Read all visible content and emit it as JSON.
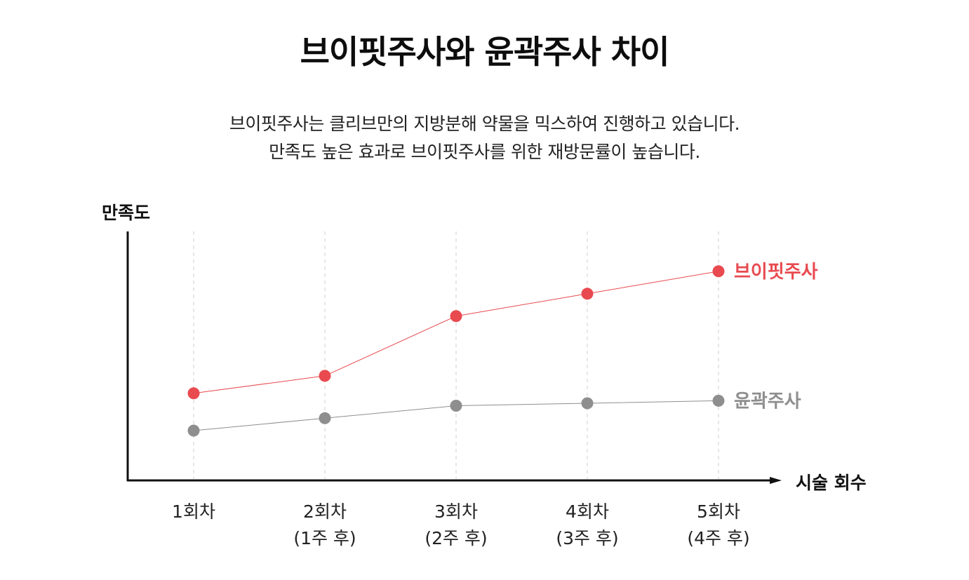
{
  "title": "브이핏주사와 윤곽주사 차이",
  "description": {
    "line1": "브이핏주사는 클리브만의 지방분해 약물을 믹스하여 진행하고 있습니다.",
    "line2": "만족도 높은 효과로 브이핏주사를 위한 재방문률이 높습니다."
  },
  "chart_data": {
    "type": "line",
    "ylabel": "만족도",
    "xlabel": "시술 회수",
    "categories": [
      [
        "1회차"
      ],
      [
        "2회차",
        "(1주 후)"
      ],
      [
        "3회차",
        "(2주 후)"
      ],
      [
        "4회차",
        "(3주 후)"
      ],
      [
        "5회차",
        "(4주 후)"
      ]
    ],
    "ylim": [
      0,
      10
    ],
    "grid": "vertical-dashed",
    "legend": "end-of-line",
    "series": [
      {
        "name": "브이핏주사",
        "color": "#e84a4f",
        "values": [
          3.5,
          4.2,
          6.6,
          7.5,
          8.4
        ]
      },
      {
        "name": "윤곽주사",
        "color": "#8e8e8e",
        "values": [
          2.0,
          2.5,
          3.0,
          3.1,
          3.2
        ]
      }
    ]
  }
}
